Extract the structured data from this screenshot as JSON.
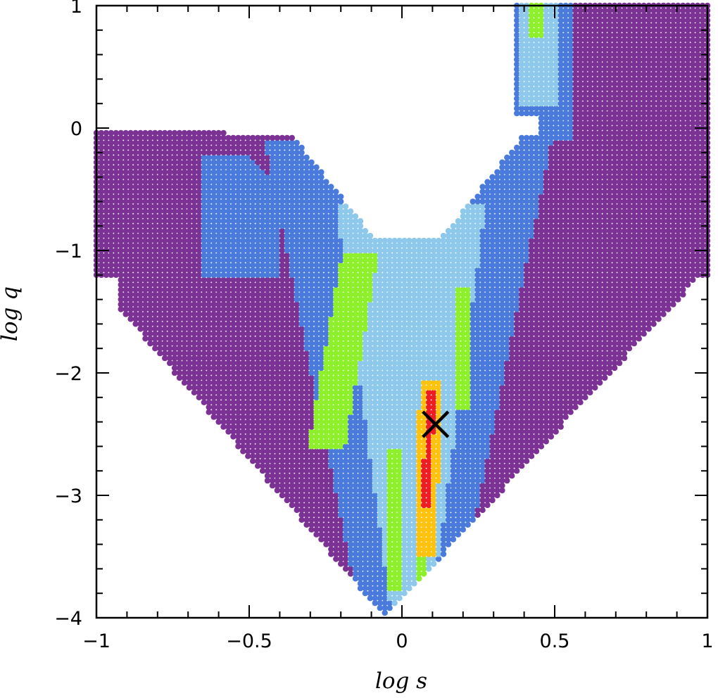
{
  "chart_data": {
    "type": "scatter",
    "title": "",
    "xlabel": "log s",
    "ylabel": "log q",
    "xlim": [
      -1,
      1
    ],
    "ylim": [
      -4,
      1
    ],
    "xticks": [
      -1,
      -0.5,
      0,
      0.5,
      1
    ],
    "xtick_labels": [
      "−1",
      "−0.5",
      "0",
      "0.5",
      "1"
    ],
    "yticks": [
      1,
      0,
      -1,
      -2,
      -3,
      -4
    ],
    "ytick_labels": [
      "1",
      "0",
      "−1",
      "−2",
      "−3",
      "−4"
    ],
    "grid": false,
    "legend": "none",
    "colors": {
      "level_1": "#7b3294",
      "level_2": "#4a7bdc",
      "level_3": "#8ec9ec",
      "level_4": "#8ef02a",
      "level_5": "#ffc20e",
      "level_6": "#ee1c25",
      "marker": "#000000",
      "frame": "#000000"
    },
    "levels": [
      {
        "level": 1,
        "description_color": "purple"
      },
      {
        "level": 2,
        "description_color": "blue"
      },
      {
        "level": 3,
        "description_color": "light-blue"
      },
      {
        "level": 4,
        "description_color": "green"
      },
      {
        "level": 5,
        "description_color": "yellow"
      },
      {
        "level": 6,
        "description_color": "red"
      }
    ],
    "best_fit_marker": {
      "symbol": "×",
      "x": 0.11,
      "y": -2.42
    },
    "grid_spacing": {
      "dx": 0.016,
      "dy": 0.04
    }
  }
}
